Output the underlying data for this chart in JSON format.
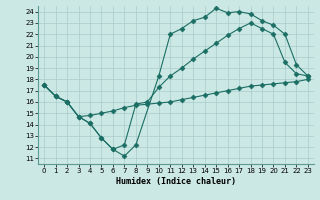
{
  "xlabel": "Humidex (Indice chaleur)",
  "bg_color": "#cce8e4",
  "grid_color": "#aacccc",
  "line_color": "#1a6e64",
  "xlim": [
    -0.5,
    23.5
  ],
  "ylim": [
    10.5,
    24.5
  ],
  "xticks": [
    0,
    1,
    2,
    3,
    4,
    5,
    6,
    7,
    8,
    9,
    10,
    11,
    12,
    13,
    14,
    15,
    16,
    17,
    18,
    19,
    20,
    21,
    22,
    23
  ],
  "yticks": [
    11,
    12,
    13,
    14,
    15,
    16,
    17,
    18,
    19,
    20,
    21,
    22,
    23,
    24
  ],
  "line1_x": [
    0,
    1,
    2,
    3,
    4,
    5,
    6,
    7,
    8,
    10,
    11,
    12,
    13,
    14,
    15,
    16,
    17,
    18,
    19,
    20,
    21,
    22,
    23
  ],
  "line1_y": [
    17.5,
    16.5,
    16.0,
    14.7,
    14.1,
    12.8,
    11.8,
    11.2,
    12.2,
    18.3,
    22.0,
    22.5,
    23.2,
    23.5,
    24.3,
    23.9,
    24.0,
    23.8,
    23.2,
    22.8,
    22.0,
    19.3,
    18.3
  ],
  "line2_x": [
    0,
    1,
    2,
    3,
    4,
    5,
    6,
    7,
    8,
    9,
    10,
    11,
    12,
    13,
    14,
    15,
    16,
    17,
    18,
    19,
    20,
    21,
    22,
    23
  ],
  "line2_y": [
    17.5,
    16.5,
    16.0,
    14.7,
    14.1,
    12.8,
    11.8,
    12.2,
    15.8,
    16.0,
    17.3,
    18.3,
    19.0,
    19.8,
    20.5,
    21.2,
    21.9,
    22.5,
    23.0,
    22.5,
    22.0,
    19.5,
    18.5,
    18.3
  ],
  "line3_x": [
    0,
    1,
    2,
    3,
    4,
    5,
    6,
    7,
    8,
    9,
    10,
    11,
    12,
    13,
    14,
    15,
    16,
    17,
    18,
    19,
    20,
    21,
    22,
    23
  ],
  "line3_y": [
    17.5,
    16.5,
    16.0,
    14.7,
    14.8,
    15.0,
    15.2,
    15.5,
    15.7,
    15.8,
    15.9,
    16.0,
    16.2,
    16.4,
    16.6,
    16.8,
    17.0,
    17.2,
    17.4,
    17.5,
    17.6,
    17.7,
    17.8,
    18.0
  ]
}
